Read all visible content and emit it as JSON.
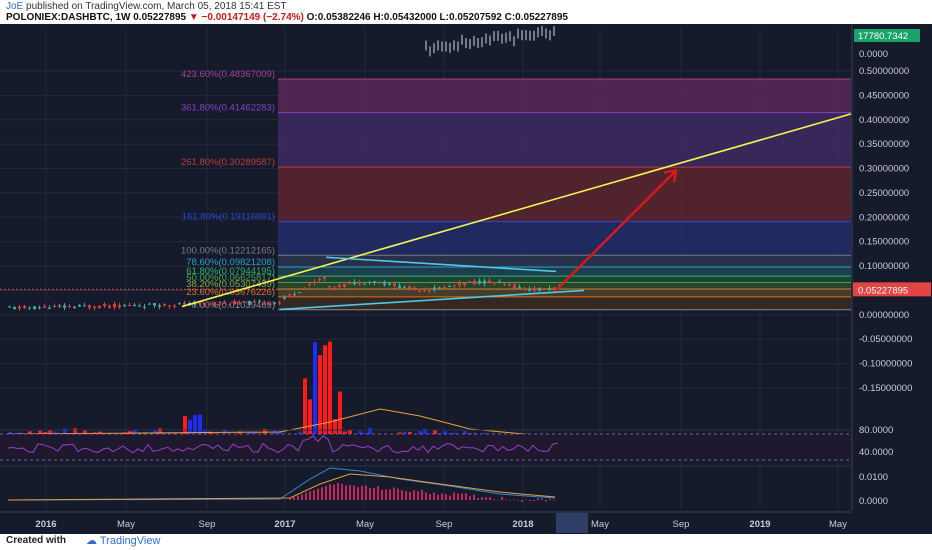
{
  "header": {
    "author": "JoE",
    "published": "published on TradingView.com, March 05, 2018 15:41 EST",
    "symbol": "POLONIEX:DASHBTC, 1W",
    "last": "0.05227895",
    "change": "−0.00147149 (−2.74%)",
    "o": "O:0.05382246",
    "h": "H:0.05432000",
    "l": "L:0.05207592",
    "c": "C:0.05227895"
  },
  "footer": {
    "created": "Created with",
    "brand": "TradingView"
  },
  "colors": {
    "bg": "#151b2b",
    "up": "#3ea8a0",
    "down": "#e33b3b",
    "vol_up": "#1a2ef5",
    "vol_down": "#ff1a1a",
    "trend": "#f4f451",
    "tri": "#53c6e6",
    "arrow": "#e01717"
  },
  "chart_data": {
    "type": "candlestick",
    "symbol": "POLONIEX:DASHBTC",
    "interval": "1W",
    "last_price_label": "0.05227895",
    "inset_price_labels": [
      "17780.7342",
      "0.0000"
    ],
    "x_axis_labels": [
      "2016",
      "May",
      "Sep",
      "2017",
      "May",
      "Sep",
      "2018",
      "May",
      "Sep",
      "2019",
      "May"
    ],
    "y_axis_labels": [
      "0.50000000",
      "0.45000000",
      "0.40000000",
      "0.35000000",
      "0.30000000",
      "0.25000000",
      "0.20000000",
      "0.15000000",
      "0.10000000",
      "0.05000000",
      "0.00000000",
      "-0.05000000",
      "-0.10000000",
      "-0.15000000"
    ],
    "ylim": [
      -0.16,
      0.52
    ],
    "fib_levels": [
      {
        "label": "423.60%(0.48367009)",
        "value": 0.48367009,
        "color": "#a7409a"
      },
      {
        "label": "361.80%(0.41462283)",
        "value": 0.41462283,
        "color": "#8a3dc8"
      },
      {
        "label": "261.80%(0.30289587)",
        "value": 0.30289587,
        "color": "#c0393b"
      },
      {
        "label": "161.80%(0.19116891)",
        "value": 0.19116891,
        "color": "#2e44d6"
      },
      {
        "label": "100.00%(0.12212165)",
        "value": 0.12212165,
        "color": "#7a7a7a"
      },
      {
        "label": "78.60%(0.09821208)",
        "value": 0.09821208,
        "color": "#2a9ec9"
      },
      {
        "label": "61.80%(0.07944195)",
        "value": 0.07944195,
        "color": "#2fb36b"
      },
      {
        "label": "50.00%(0.06625817)",
        "value": 0.06625817,
        "color": "#3fa84a"
      },
      {
        "label": "38.20%(0.05307439)",
        "value": 0.05307439,
        "color": "#8aa83a"
      },
      {
        "label": "23.60%(0.03676226)",
        "value": 0.03676226,
        "color": "#d9701f"
      },
      {
        "label": "0.00%(0.01039469)",
        "value": 0.01039469,
        "color": "#8a8a8a"
      }
    ],
    "rsi_labels": [
      "80.0000",
      "40.0000"
    ],
    "macd_labels": [
      "0.0100",
      "0.0000"
    ]
  }
}
